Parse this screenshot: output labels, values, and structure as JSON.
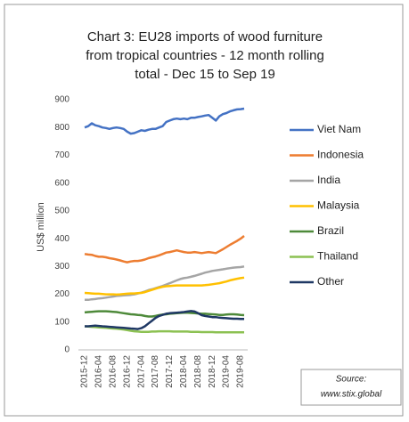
{
  "chart_data": {
    "type": "line",
    "title": [
      "Chart 3: EU28 imports of wood furniture",
      "from tropical countries - 12 month rolling",
      "total - Dec 15 to Sep 19"
    ],
    "y_label": "US$ million",
    "annotations": [
      "Source:",
      "www.stix.global"
    ],
    "categories": [
      "2015-12",
      null,
      null,
      null,
      "2016-04",
      null,
      null,
      null,
      "2016-08",
      null,
      null,
      null,
      "2016-12",
      null,
      null,
      null,
      "2017-04",
      null,
      null,
      null,
      "2017-08",
      null,
      null,
      null,
      "2017-12",
      null,
      null,
      null,
      "2018-04",
      null,
      null,
      null,
      "2018-08",
      null,
      null,
      null,
      "2018-12",
      null,
      null,
      null,
      "2019-04",
      null,
      null,
      null,
      "2019-08",
      null
    ],
    "ylim": [
      0,
      900
    ],
    "yticks": [
      0,
      100,
      200,
      300,
      400,
      500,
      600,
      700,
      800,
      900
    ],
    "legend": "right",
    "series": [
      {
        "name": "Viet Nam",
        "color": "#4472c4",
        "values": [
          800,
          805,
          815,
          808,
          805,
          800,
          798,
          795,
          798,
          800,
          798,
          795,
          785,
          778,
          780,
          785,
          790,
          788,
          792,
          795,
          795,
          800,
          805,
          820,
          825,
          830,
          832,
          830,
          832,
          830,
          835,
          835,
          838,
          840,
          843,
          845,
          835,
          825,
          840,
          848,
          852,
          858,
          862,
          865,
          866,
          868
        ]
      },
      {
        "name": "Indonesia",
        "color": "#ed7d31",
        "values": [
          345,
          343,
          342,
          338,
          335,
          335,
          333,
          330,
          328,
          325,
          322,
          318,
          315,
          318,
          320,
          320,
          322,
          325,
          330,
          333,
          336,
          340,
          345,
          350,
          352,
          355,
          358,
          355,
          352,
          350,
          350,
          352,
          350,
          348,
          350,
          352,
          350,
          348,
          355,
          362,
          370,
          378,
          385,
          392,
          400,
          410
        ]
      },
      {
        "name": "India",
        "color": "#a5a5a5",
        "values": [
          180,
          180,
          182,
          183,
          185,
          186,
          188,
          190,
          192,
          194,
          195,
          196,
          197,
          198,
          200,
          203,
          206,
          210,
          215,
          218,
          222,
          226,
          230,
          235,
          240,
          245,
          250,
          255,
          258,
          260,
          263,
          266,
          270,
          274,
          278,
          281,
          284,
          286,
          288,
          290,
          292,
          294,
          296,
          297,
          298,
          300
        ]
      },
      {
        "name": "Malaysia",
        "color": "#ffc000",
        "values": [
          205,
          204,
          203,
          202,
          202,
          201,
          200,
          200,
          200,
          199,
          200,
          201,
          202,
          203,
          203,
          204,
          205,
          208,
          212,
          216,
          220,
          224,
          227,
          229,
          230,
          231,
          232,
          232,
          232,
          232,
          232,
          232,
          232,
          232,
          233,
          234,
          236,
          238,
          240,
          243,
          246,
          250,
          253,
          256,
          258,
          260
        ]
      },
      {
        "name": "Brazil",
        "color": "#4e8a3a",
        "values": [
          135,
          136,
          137,
          138,
          139,
          139,
          139,
          138,
          137,
          136,
          134,
          132,
          130,
          128,
          127,
          126,
          125,
          122,
          120,
          120,
          122,
          125,
          127,
          128,
          130,
          131,
          132,
          133,
          134,
          134,
          133,
          132,
          131,
          130,
          130,
          129,
          128,
          127,
          126,
          126,
          127,
          128,
          128,
          127,
          126,
          125
        ]
      },
      {
        "name": "Thailand",
        "color": "#8cc152",
        "values": [
          85,
          84,
          83,
          82,
          81,
          80,
          79,
          78,
          77,
          76,
          75,
          73,
          71,
          69,
          67,
          66,
          65,
          65,
          65,
          66,
          66,
          67,
          67,
          67,
          67,
          66,
          66,
          66,
          66,
          66,
          65,
          65,
          65,
          64,
          64,
          64,
          64,
          63,
          63,
          63,
          63,
          63,
          63,
          63,
          63,
          63
        ]
      },
      {
        "name": "Other",
        "color": "#1f3864",
        "values": [
          85,
          85,
          86,
          87,
          86,
          85,
          84,
          83,
          82,
          81,
          80,
          79,
          78,
          77,
          76,
          75,
          78,
          85,
          95,
          105,
          115,
          122,
          126,
          130,
          132,
          133,
          134,
          135,
          136,
          138,
          140,
          138,
          132,
          125,
          122,
          120,
          118,
          118,
          116,
          115,
          114,
          113,
          112,
          112,
          111,
          111
        ]
      }
    ]
  }
}
